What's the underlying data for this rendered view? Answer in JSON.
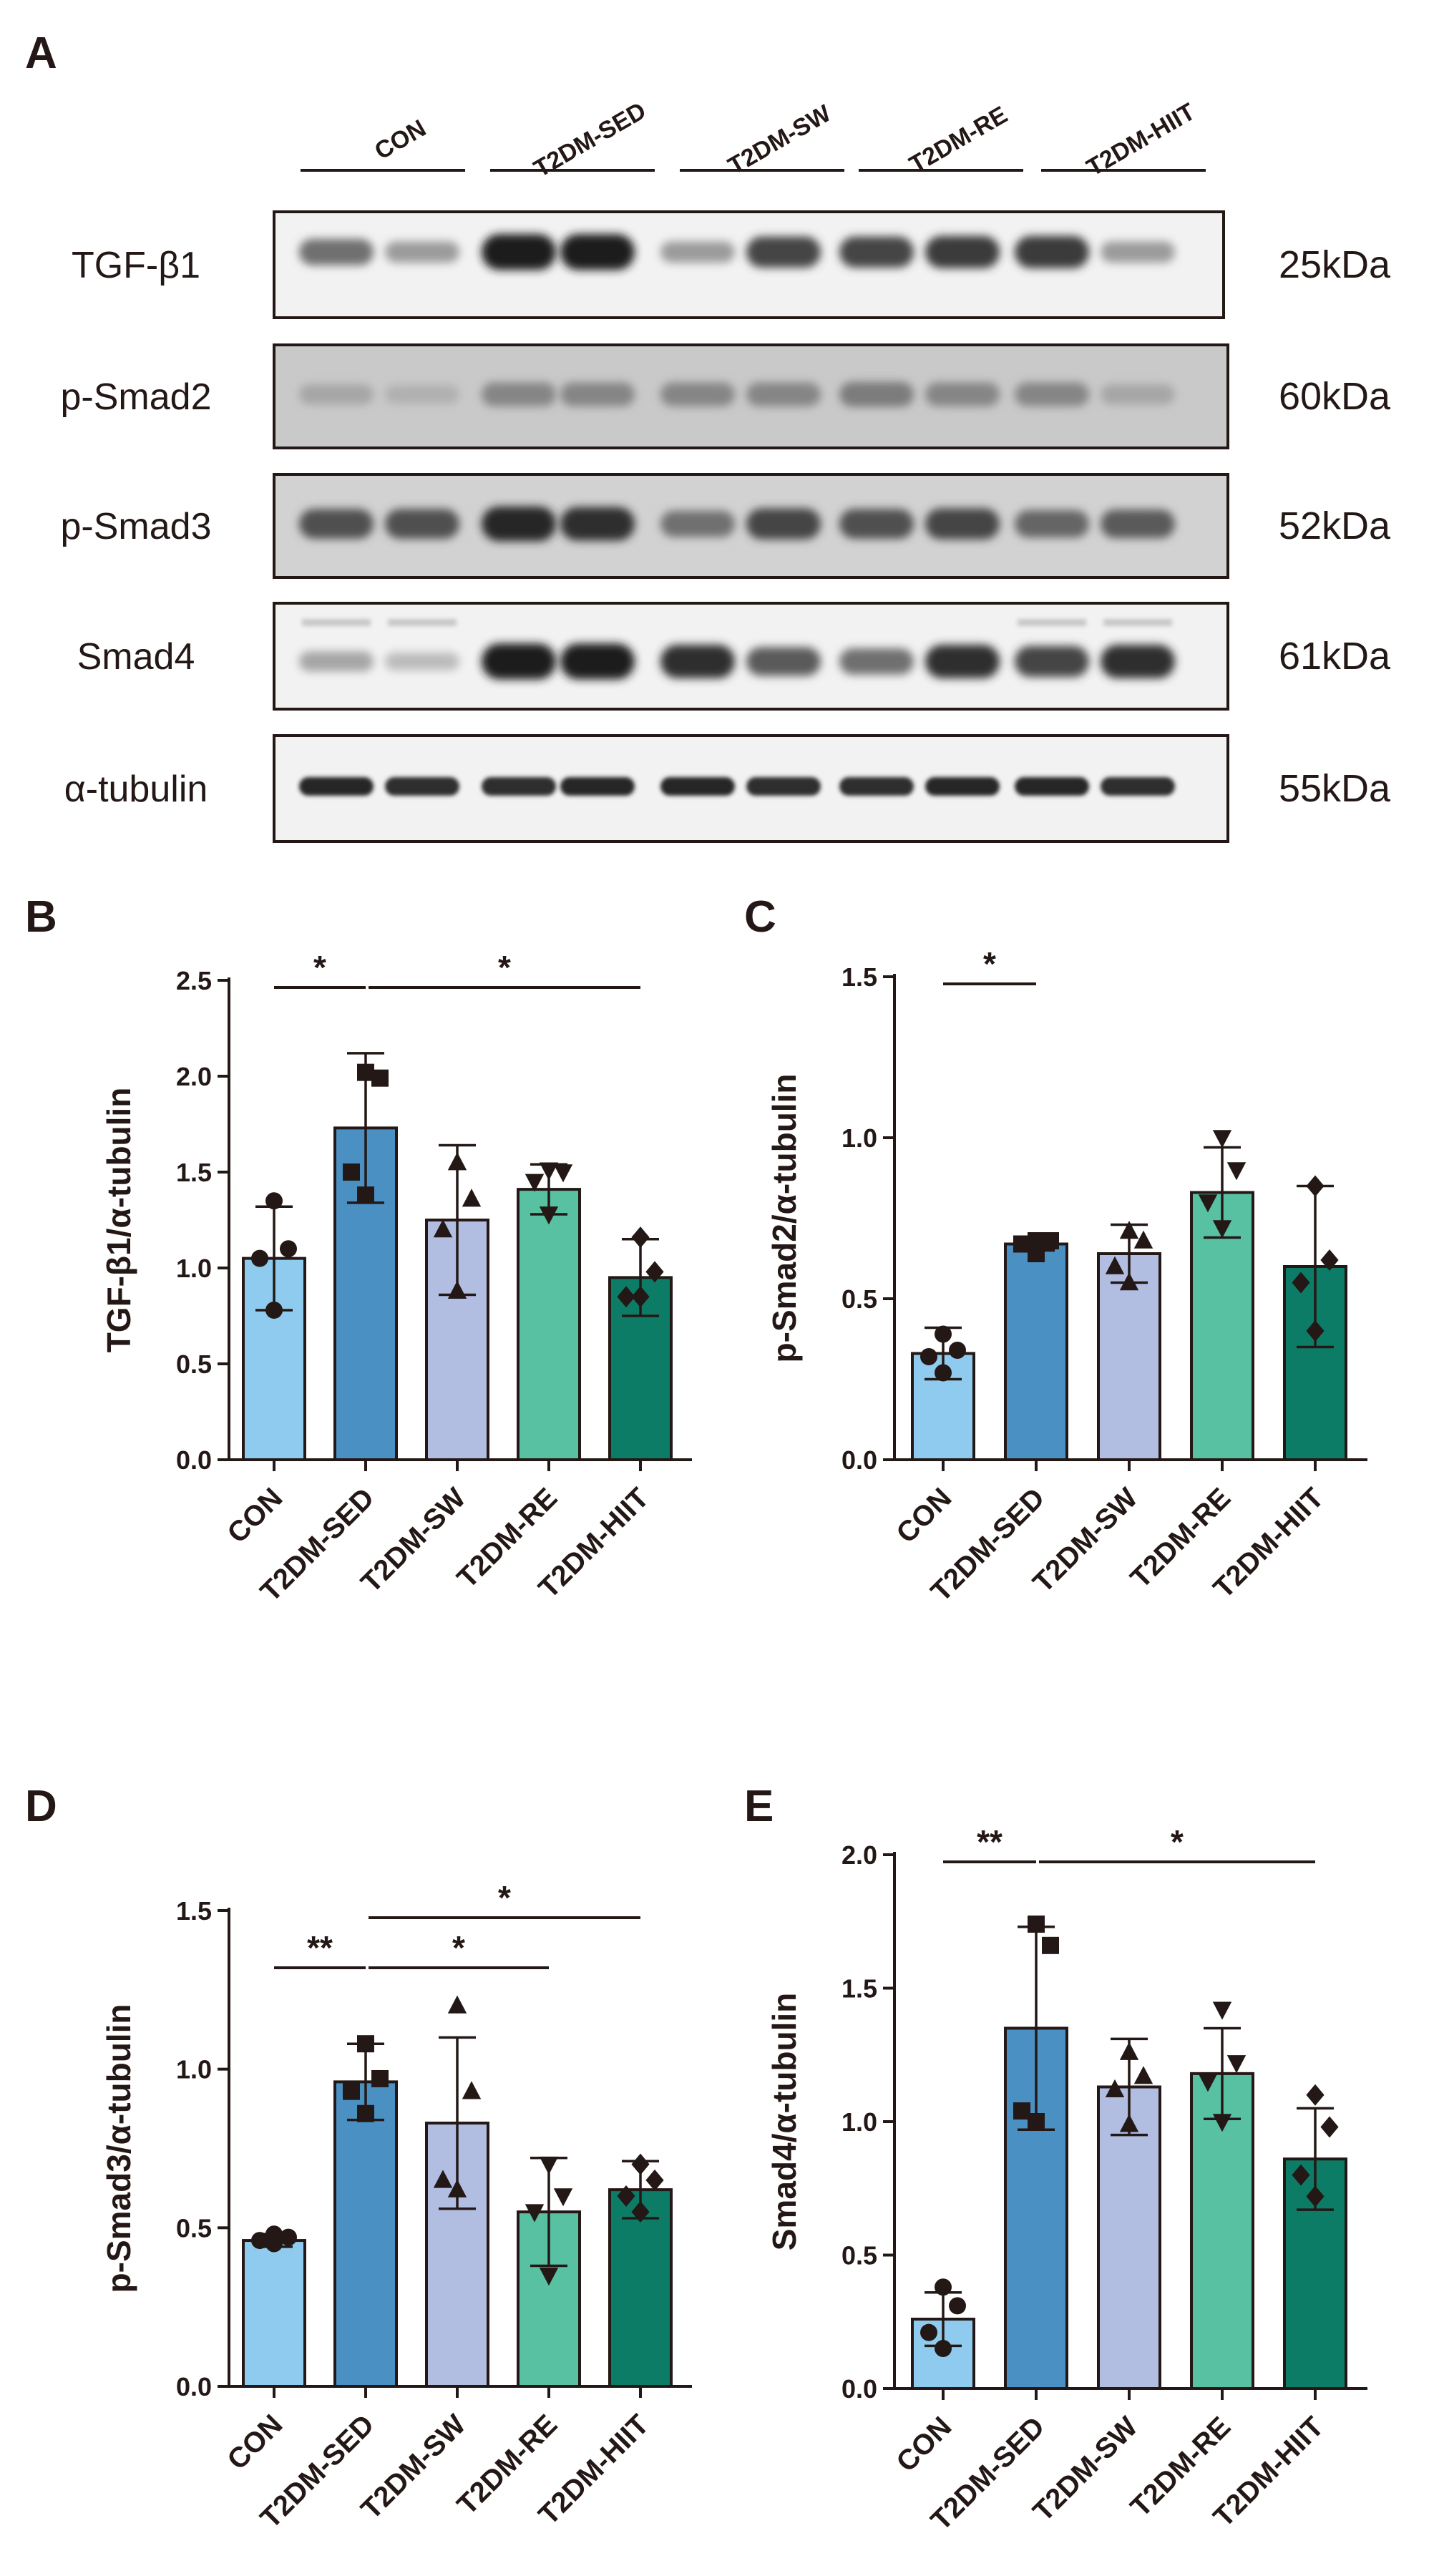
{
  "panels": {
    "A": "A",
    "B": "B",
    "C": "C",
    "D": "D",
    "E": "E"
  },
  "blot": {
    "lane_groups": [
      "CON",
      "T2DM-SED",
      "T2DM-SW",
      "T2DM-RE",
      "T2DM-HIIT"
    ],
    "rows": [
      {
        "protein": "TGF-β1",
        "kda": "25kDa",
        "band_intensity": [
          0.55,
          0.35,
          0.95,
          0.95,
          0.35,
          0.75,
          0.75,
          0.8,
          0.8,
          0.35
        ]
      },
      {
        "protein": "p-Smad2",
        "kda": "60kDa",
        "band_intensity": [
          0.3,
          0.25,
          0.45,
          0.45,
          0.45,
          0.45,
          0.5,
          0.45,
          0.45,
          0.3
        ]
      },
      {
        "protein": "p-Smad3",
        "kda": "52kDa",
        "band_intensity": [
          0.7,
          0.7,
          0.9,
          0.85,
          0.55,
          0.75,
          0.7,
          0.75,
          0.6,
          0.65
        ]
      },
      {
        "protein": "Smad4",
        "kda": "61kDa",
        "band_intensity": [
          0.3,
          0.2,
          0.95,
          0.95,
          0.85,
          0.65,
          0.55,
          0.85,
          0.75,
          0.85
        ]
      },
      {
        "protein": "α-tubulin",
        "kda": "55kDa",
        "band_intensity": [
          0.9,
          0.85,
          0.85,
          0.9,
          0.9,
          0.85,
          0.85,
          0.9,
          0.9,
          0.85
        ]
      }
    ]
  },
  "colors": {
    "CON": "#8ecbee",
    "T2DM-SED": "#4a90c2",
    "T2DM-SW": "#b2bde2",
    "T2DM-RE": "#58c1a2",
    "T2DM-HIIT": "#0d7c67"
  },
  "chart_data": [
    {
      "panel": "B",
      "type": "bar",
      "categories": [
        "CON",
        "T2DM-SED",
        "T2DM-SW",
        "T2DM-RE",
        "T2DM-HIIT"
      ],
      "values": [
        1.05,
        1.73,
        1.25,
        1.41,
        0.95
      ],
      "sd": [
        0.27,
        0.39,
        0.39,
        0.13,
        0.2
      ],
      "points": [
        [
          1.35,
          1.1,
          1.05,
          0.78
        ],
        [
          2.02,
          1.99,
          1.5,
          1.38
        ],
        [
          1.55,
          1.36,
          1.2,
          0.88
        ],
        [
          1.51,
          1.5,
          1.45,
          1.28
        ],
        [
          1.16,
          0.98,
          0.85,
          0.85
        ]
      ],
      "markers": [
        "circle",
        "square",
        "triangle",
        "triangle-down",
        "diamond"
      ],
      "ylabel": "TGF-β1/α-tubulin",
      "ylim": [
        0,
        2.5
      ],
      "yticks": [
        "0.0",
        "0.5",
        "1.0",
        "1.5",
        "2.0",
        "2.5"
      ],
      "significance": [
        {
          "from": 0,
          "to": 1,
          "label": "*"
        },
        {
          "from": 1,
          "to": 4,
          "label": "*"
        }
      ]
    },
    {
      "panel": "C",
      "type": "bar",
      "categories": [
        "CON",
        "T2DM-SED",
        "T2DM-SW",
        "T2DM-RE",
        "T2DM-HIIT"
      ],
      "values": [
        0.33,
        0.67,
        0.64,
        0.83,
        0.6
      ],
      "sd": [
        0.08,
        0.02,
        0.09,
        0.14,
        0.25
      ],
      "points": [
        [
          0.39,
          0.34,
          0.32,
          0.27
        ],
        [
          0.68,
          0.68,
          0.67,
          0.64
        ],
        [
          0.71,
          0.68,
          0.6,
          0.55
        ],
        [
          1.0,
          0.9,
          0.8,
          0.72
        ],
        [
          0.85,
          0.62,
          0.55,
          0.4
        ]
      ],
      "markers": [
        "circle",
        "square",
        "triangle",
        "triangle-down",
        "diamond"
      ],
      "ylabel": "p-Smad2/α-tubulin",
      "ylim": [
        0,
        1.5
      ],
      "yticks": [
        "0.0",
        "0.5",
        "1.0",
        "1.5"
      ],
      "significance": [
        {
          "from": 0,
          "to": 1,
          "label": "*"
        }
      ]
    },
    {
      "panel": "D",
      "type": "bar",
      "categories": [
        "CON",
        "T2DM-SED",
        "T2DM-SW",
        "T2DM-RE",
        "T2DM-HIIT"
      ],
      "values": [
        0.46,
        0.96,
        0.83,
        0.55,
        0.62
      ],
      "sd": [
        0.02,
        0.12,
        0.27,
        0.17,
        0.09
      ],
      "points": [
        [
          0.48,
          0.47,
          0.46,
          0.45
        ],
        [
          1.08,
          0.97,
          0.93,
          0.86
        ],
        [
          1.2,
          0.93,
          0.65,
          0.62
        ],
        [
          0.7,
          0.6,
          0.55,
          0.35
        ],
        [
          0.7,
          0.65,
          0.6,
          0.55
        ]
      ],
      "markers": [
        "circle",
        "square",
        "triangle",
        "triangle-down",
        "diamond"
      ],
      "ylabel": "p-Smad3/α-tubulin",
      "ylim": [
        0,
        1.5
      ],
      "yticks": [
        "0.0",
        "0.5",
        "1.0",
        "1.5"
      ],
      "significance": [
        {
          "from": 0,
          "to": 1,
          "label": "**"
        },
        {
          "from": 1,
          "to": 3,
          "label": "*"
        },
        {
          "from": 1,
          "to": 4,
          "label": "*"
        }
      ]
    },
    {
      "panel": "E",
      "type": "bar",
      "categories": [
        "CON",
        "T2DM-SED",
        "T2DM-SW",
        "T2DM-RE",
        "T2DM-HIIT"
      ],
      "values": [
        0.26,
        1.35,
        1.13,
        1.18,
        0.86
      ],
      "sd": [
        0.1,
        0.38,
        0.18,
        0.17,
        0.19
      ],
      "points": [
        [
          0.38,
          0.31,
          0.21,
          0.15
        ],
        [
          1.74,
          1.66,
          1.04,
          1.0
        ],
        [
          1.26,
          1.17,
          1.12,
          0.99
        ],
        [
          1.42,
          1.22,
          1.15,
          1.0
        ],
        [
          1.1,
          0.98,
          0.8,
          0.72
        ]
      ],
      "markers": [
        "circle",
        "square",
        "triangle",
        "triangle-down",
        "diamond"
      ],
      "ylabel": "Smad4/α-tubulin",
      "ylim": [
        0,
        2.0
      ],
      "yticks": [
        "0.0",
        "0.5",
        "1.0",
        "1.5",
        "2.0"
      ],
      "significance": [
        {
          "from": 0,
          "to": 1,
          "label": "**"
        },
        {
          "from": 1,
          "to": 4,
          "label": "*"
        }
      ]
    }
  ]
}
